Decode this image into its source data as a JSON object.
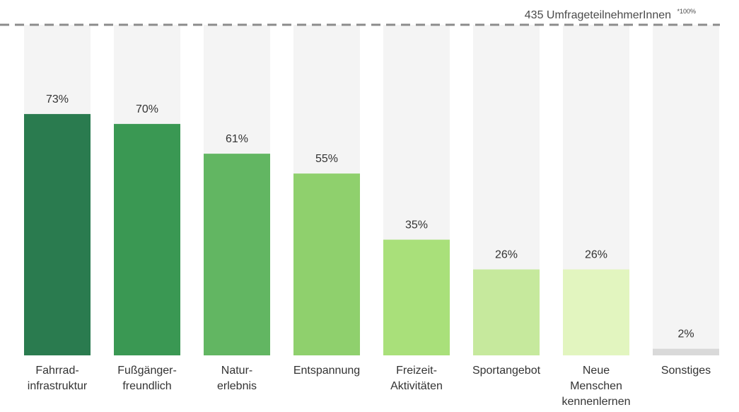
{
  "chart_data": {
    "type": "bar",
    "categories": [
      [
        "Fahrrad-",
        "infrastruktur"
      ],
      [
        "Fußgänger-",
        "freundlich"
      ],
      [
        "Natur-",
        "erlebnis"
      ],
      [
        "Entspannung"
      ],
      [
        "Freizeit-",
        "Aktivitäten"
      ],
      [
        "Sportangebot"
      ],
      [
        "Neue",
        "Menschen",
        "kennenlernen"
      ],
      [
        "Sonstiges"
      ]
    ],
    "values": [
      73,
      70,
      61,
      55,
      35,
      26,
      26,
      2
    ],
    "value_labels": [
      "73%",
      "70%",
      "61%",
      "55%",
      "35%",
      "26%",
      "26%",
      "2%"
    ],
    "ylim": [
      0,
      100
    ],
    "reference_line": {
      "value": 100,
      "label": "435 UmfrageteilnehmerInnen",
      "superscript": "*100%"
    },
    "grid": false,
    "legend": "none"
  },
  "colors": {
    "bars": [
      "#2a7b4f",
      "#3a9853",
      "#62b662",
      "#8fd06d",
      "#a9e07a",
      "#c6e99d",
      "#e2f5bf",
      "#d9d9d9"
    ],
    "background_bar": "#f4f4f4",
    "reference_line": "#8c8c8c"
  }
}
